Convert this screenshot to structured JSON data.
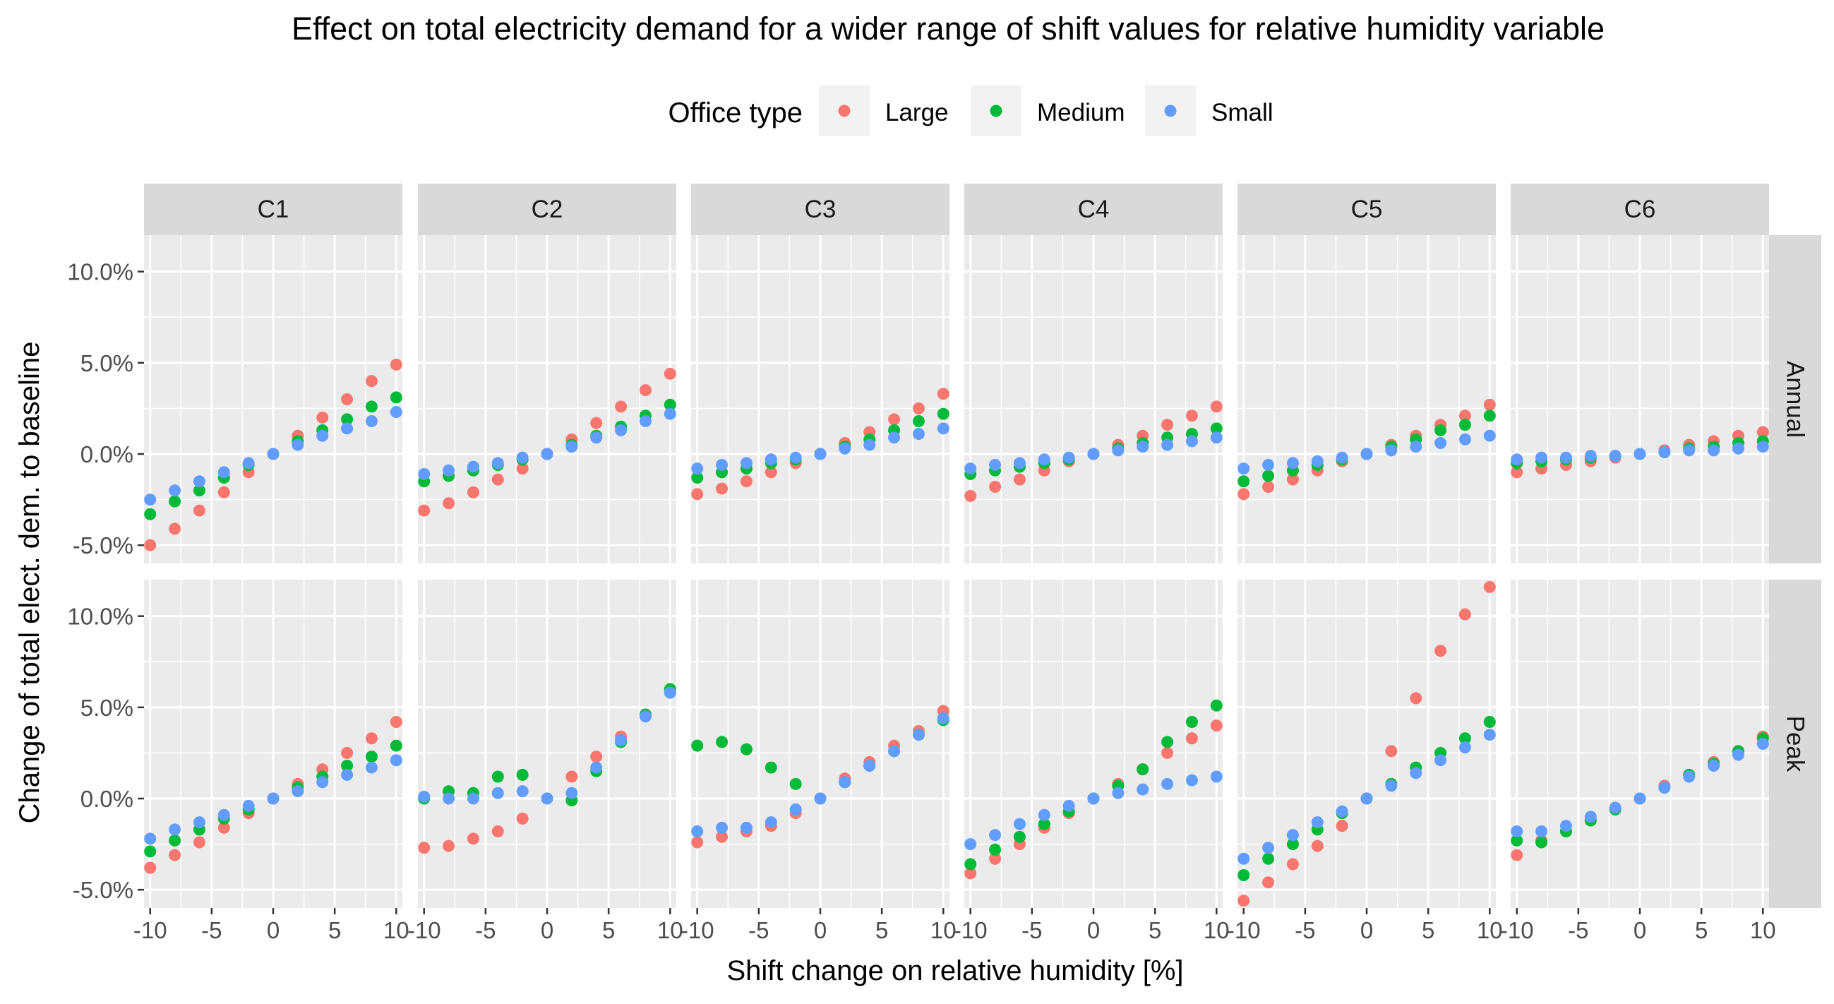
{
  "colors": {
    "Large": "#F8766D",
    "Medium": "#00BA38",
    "Small": "#619CFF",
    "panel_bg": "#EBEBEB",
    "strip_bg": "#D9D9D9",
    "grid": "#FFFFFF"
  },
  "chart_data": {
    "type": "scatter",
    "title": "Effect on total electricity demand for a wider range of shift values for relative humidity variable",
    "xlabel": "Shift change on relative humidity [%]",
    "ylabel": "Change of total elect. dem. to baseline",
    "legend": {
      "title": "Office type",
      "position": "top",
      "entries": [
        "Large",
        "Medium",
        "Small"
      ]
    },
    "grid": true,
    "xlim": [
      -10.5,
      10.5
    ],
    "ylim": [
      -6.0,
      12.0
    ],
    "x_ticks": [
      "-10",
      "-5",
      "0",
      "5",
      "10"
    ],
    "x_tick_values": [
      -10,
      -5,
      0,
      5,
      10
    ],
    "y_ticks": [
      "-5.0%",
      "0.0%",
      "5.0%",
      "10.0%"
    ],
    "y_tick_values": [
      -5,
      0,
      5,
      10
    ],
    "columns": [
      "C1",
      "C2",
      "C3",
      "C4",
      "C5",
      "C6"
    ],
    "rows": [
      "Annual",
      "Peak"
    ],
    "x": [
      -10,
      -8,
      -6,
      -4,
      -2,
      0,
      2,
      4,
      6,
      8,
      10
    ],
    "panels": [
      {
        "row": "Annual",
        "col": "C1",
        "series": [
          {
            "name": "Large",
            "values": [
              -5.0,
              -4.1,
              -3.1,
              -2.1,
              -1.0,
              0,
              1.0,
              2.0,
              3.0,
              4.0,
              4.9
            ]
          },
          {
            "name": "Medium",
            "values": [
              -3.3,
              -2.6,
              -2.0,
              -1.3,
              -0.6,
              0,
              0.7,
              1.3,
              1.9,
              2.6,
              3.1
            ]
          },
          {
            "name": "Small",
            "values": [
              -2.5,
              -2.0,
              -1.5,
              -1.0,
              -0.5,
              0,
              0.5,
              1.0,
              1.4,
              1.8,
              2.3
            ]
          }
        ]
      },
      {
        "row": "Annual",
        "col": "C2",
        "series": [
          {
            "name": "Large",
            "values": [
              -3.1,
              -2.7,
              -2.1,
              -1.4,
              -0.8,
              0,
              0.8,
              1.7,
              2.6,
              3.5,
              4.4
            ]
          },
          {
            "name": "Medium",
            "values": [
              -1.5,
              -1.2,
              -0.9,
              -0.6,
              -0.3,
              0,
              0.5,
              1.0,
              1.5,
              2.1,
              2.7
            ]
          },
          {
            "name": "Small",
            "values": [
              -1.1,
              -0.9,
              -0.7,
              -0.5,
              -0.2,
              0,
              0.4,
              0.9,
              1.3,
              1.8,
              2.2
            ]
          }
        ]
      },
      {
        "row": "Annual",
        "col": "C3",
        "series": [
          {
            "name": "Large",
            "values": [
              -2.2,
              -1.9,
              -1.5,
              -1.0,
              -0.5,
              0,
              0.6,
              1.2,
              1.9,
              2.5,
              3.3
            ]
          },
          {
            "name": "Medium",
            "values": [
              -1.3,
              -1.0,
              -0.8,
              -0.5,
              -0.3,
              0,
              0.4,
              0.8,
              1.3,
              1.8,
              2.2
            ]
          },
          {
            "name": "Small",
            "values": [
              -0.8,
              -0.6,
              -0.5,
              -0.3,
              -0.2,
              0,
              0.3,
              0.5,
              0.9,
              1.1,
              1.4
            ]
          }
        ]
      },
      {
        "row": "Annual",
        "col": "C4",
        "series": [
          {
            "name": "Large",
            "values": [
              -2.3,
              -1.8,
              -1.4,
              -0.9,
              -0.4,
              0,
              0.5,
              1.0,
              1.6,
              2.1,
              2.6
            ]
          },
          {
            "name": "Medium",
            "values": [
              -1.1,
              -0.9,
              -0.7,
              -0.5,
              -0.3,
              0,
              0.3,
              0.6,
              0.9,
              1.1,
              1.4
            ]
          },
          {
            "name": "Small",
            "values": [
              -0.8,
              -0.6,
              -0.5,
              -0.3,
              -0.2,
              0,
              0.2,
              0.4,
              0.5,
              0.7,
              0.9
            ]
          }
        ]
      },
      {
        "row": "Annual",
        "col": "C5",
        "series": [
          {
            "name": "Large",
            "values": [
              -2.2,
              -1.8,
              -1.4,
              -0.9,
              -0.4,
              0,
              0.5,
              1.0,
              1.6,
              2.1,
              2.7
            ]
          },
          {
            "name": "Medium",
            "values": [
              -1.5,
              -1.2,
              -0.9,
              -0.6,
              -0.3,
              0,
              0.4,
              0.8,
              1.3,
              1.6,
              2.1
            ]
          },
          {
            "name": "Small",
            "values": [
              -0.8,
              -0.6,
              -0.5,
              -0.4,
              -0.2,
              0,
              0.2,
              0.4,
              0.6,
              0.8,
              1.0
            ]
          }
        ]
      },
      {
        "row": "Annual",
        "col": "C6",
        "series": [
          {
            "name": "Large",
            "values": [
              -1.0,
              -0.8,
              -0.6,
              -0.4,
              -0.2,
              0,
              0.2,
              0.5,
              0.7,
              1.0,
              1.2
            ]
          },
          {
            "name": "Medium",
            "values": [
              -0.5,
              -0.4,
              -0.3,
              -0.2,
              -0.1,
              0,
              0.1,
              0.3,
              0.4,
              0.6,
              0.7
            ]
          },
          {
            "name": "Small",
            "values": [
              -0.3,
              -0.2,
              -0.2,
              -0.1,
              -0.1,
              0,
              0.1,
              0.2,
              0.2,
              0.3,
              0.4
            ]
          }
        ]
      },
      {
        "row": "Peak",
        "col": "C1",
        "series": [
          {
            "name": "Large",
            "values": [
              -3.8,
              -3.1,
              -2.4,
              -1.6,
              -0.8,
              0,
              0.8,
              1.6,
              2.5,
              3.3,
              4.2
            ]
          },
          {
            "name": "Medium",
            "values": [
              -2.9,
              -2.3,
              -1.7,
              -1.1,
              -0.6,
              0,
              0.6,
              1.2,
              1.8,
              2.3,
              2.9
            ]
          },
          {
            "name": "Small",
            "values": [
              -2.2,
              -1.7,
              -1.3,
              -0.9,
              -0.4,
              0,
              0.4,
              0.9,
              1.3,
              1.7,
              2.1
            ]
          }
        ]
      },
      {
        "row": "Peak",
        "col": "C2",
        "series": [
          {
            "name": "Large",
            "values": [
              -2.7,
              -2.6,
              -2.2,
              -1.8,
              -1.1,
              0,
              1.2,
              2.3,
              3.4,
              4.6,
              5.9
            ]
          },
          {
            "name": "Medium",
            "values": [
              0.0,
              0.4,
              0.3,
              1.2,
              1.3,
              0,
              -0.1,
              1.5,
              3.1,
              4.6,
              6.0
            ]
          },
          {
            "name": "Small",
            "values": [
              0.1,
              0.0,
              0.0,
              0.3,
              0.4,
              0,
              0.3,
              1.7,
              3.2,
              4.5,
              5.8
            ]
          }
        ]
      },
      {
        "row": "Peak",
        "col": "C3",
        "series": [
          {
            "name": "Large",
            "values": [
              -2.4,
              -2.1,
              -1.8,
              -1.5,
              -0.8,
              0,
              1.1,
              2.0,
              2.9,
              3.7,
              4.8
            ]
          },
          {
            "name": "Medium",
            "values": [
              2.9,
              3.1,
              2.7,
              1.7,
              0.8,
              0,
              0.9,
              1.8,
              2.6,
              3.5,
              4.3
            ]
          },
          {
            "name": "Small",
            "values": [
              -1.8,
              -1.6,
              -1.6,
              -1.3,
              -0.6,
              0,
              0.9,
              1.8,
              2.6,
              3.5,
              4.4
            ]
          }
        ]
      },
      {
        "row": "Peak",
        "col": "C4",
        "series": [
          {
            "name": "Large",
            "values": [
              -4.1,
              -3.3,
              -2.5,
              -1.6,
              -0.8,
              0,
              0.8,
              1.6,
              2.5,
              3.3,
              4.0
            ]
          },
          {
            "name": "Medium",
            "values": [
              -3.6,
              -2.8,
              -2.1,
              -1.4,
              -0.7,
              0,
              0.7,
              1.6,
              3.1,
              4.2,
              5.1
            ]
          },
          {
            "name": "Small",
            "values": [
              -2.5,
              -2.0,
              -1.4,
              -0.9,
              -0.4,
              0,
              0.3,
              0.5,
              0.8,
              1.0,
              1.2
            ]
          }
        ]
      },
      {
        "row": "Peak",
        "col": "C5",
        "series": [
          {
            "name": "Large",
            "values": [
              -5.6,
              -4.6,
              -3.6,
              -2.6,
              -1.5,
              0,
              2.6,
              5.5,
              8.1,
              10.1,
              11.6
            ]
          },
          {
            "name": "Medium",
            "values": [
              -4.2,
              -3.3,
              -2.5,
              -1.7,
              -0.8,
              0,
              0.8,
              1.7,
              2.5,
              3.3,
              4.2
            ]
          },
          {
            "name": "Small",
            "values": [
              -3.3,
              -2.7,
              -2.0,
              -1.3,
              -0.7,
              0,
              0.7,
              1.4,
              2.1,
              2.8,
              3.5
            ]
          }
        ]
      },
      {
        "row": "Peak",
        "col": "C6",
        "series": [
          {
            "name": "Large",
            "values": [
              -3.1,
              -2.3,
              -1.8,
              -1.2,
              -0.6,
              0,
              0.7,
              1.3,
              2.0,
              2.6,
              3.4
            ]
          },
          {
            "name": "Medium",
            "values": [
              -2.3,
              -2.4,
              -1.8,
              -1.2,
              -0.6,
              0,
              0.6,
              1.3,
              1.9,
              2.6,
              3.3
            ]
          },
          {
            "name": "Small",
            "values": [
              -1.8,
              -1.8,
              -1.5,
              -1.0,
              -0.5,
              0,
              0.6,
              1.2,
              1.8,
              2.4,
              3.0
            ]
          }
        ]
      }
    ]
  }
}
